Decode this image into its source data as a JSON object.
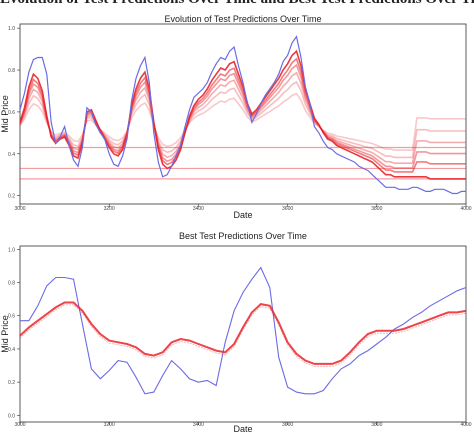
{
  "page_banner": "Evolution of Test Predictions Over Time and Best Test Predictions Over Time",
  "chart_data": [
    {
      "type": "line",
      "title": "Evolution of Test Predictions Over Time",
      "xlabel": "Date",
      "ylabel": "Mid Price",
      "xlim": [
        3000,
        4000
      ],
      "ylim": [
        0.16,
        1.02
      ],
      "xticks": [
        3000,
        3200,
        3400,
        3600,
        3800,
        4000
      ],
      "yticks": [
        0.2,
        0.4,
        0.6,
        0.8,
        1.0
      ],
      "actual_color": "#6b6be6",
      "prediction_color": "#e8242a",
      "actual": {
        "x": [
          3000,
          3010,
          3020,
          3030,
          3040,
          3050,
          3060,
          3070,
          3080,
          3090,
          3100,
          3110,
          3120,
          3130,
          3140,
          3150,
          3160,
          3170,
          3180,
          3190,
          3200,
          3210,
          3220,
          3230,
          3240,
          3250,
          3260,
          3270,
          3280,
          3290,
          3300,
          3310,
          3320,
          3330,
          3340,
          3350,
          3360,
          3370,
          3380,
          3390,
          3400,
          3410,
          3420,
          3430,
          3440,
          3450,
          3460,
          3470,
          3480,
          3490,
          3500,
          3510,
          3520,
          3530,
          3540,
          3550,
          3560,
          3570,
          3580,
          3590,
          3600,
          3610,
          3620,
          3630,
          3640,
          3650,
          3660,
          3670,
          3680,
          3690,
          3700,
          3710,
          3720,
          3730,
          3740,
          3750,
          3760,
          3770,
          3780,
          3790,
          3800,
          3810,
          3820,
          3830,
          3840,
          3850,
          3860,
          3870,
          3880,
          3890,
          3900,
          3910,
          3920,
          3930,
          3940,
          3950,
          3960,
          3970,
          3980,
          3990,
          4000
        ],
        "y": [
          0.61,
          0.69,
          0.79,
          0.85,
          0.86,
          0.86,
          0.78,
          0.55,
          0.45,
          0.48,
          0.53,
          0.44,
          0.37,
          0.34,
          0.43,
          0.62,
          0.6,
          0.54,
          0.5,
          0.47,
          0.4,
          0.35,
          0.34,
          0.39,
          0.47,
          0.65,
          0.76,
          0.82,
          0.86,
          0.74,
          0.5,
          0.36,
          0.29,
          0.3,
          0.34,
          0.39,
          0.44,
          0.53,
          0.61,
          0.67,
          0.69,
          0.71,
          0.74,
          0.79,
          0.83,
          0.86,
          0.85,
          0.89,
          0.91,
          0.82,
          0.74,
          0.64,
          0.55,
          0.59,
          0.64,
          0.68,
          0.71,
          0.74,
          0.78,
          0.84,
          0.87,
          0.93,
          0.96,
          0.86,
          0.72,
          0.64,
          0.53,
          0.5,
          0.46,
          0.43,
          0.42,
          0.4,
          0.39,
          0.38,
          0.37,
          0.36,
          0.34,
          0.33,
          0.32,
          0.3,
          0.28,
          0.26,
          0.24,
          0.24,
          0.24,
          0.23,
          0.23,
          0.23,
          0.24,
          0.24,
          0.23,
          0.22,
          0.22,
          0.23,
          0.23,
          0.23,
          0.22,
          0.21,
          0.21,
          0.22,
          0.22
        ]
      },
      "best_prediction": {
        "x": [
          3000,
          3010,
          3020,
          3030,
          3040,
          3050,
          3060,
          3070,
          3080,
          3090,
          3100,
          3110,
          3120,
          3130,
          3140,
          3150,
          3160,
          3170,
          3180,
          3190,
          3200,
          3210,
          3220,
          3230,
          3240,
          3250,
          3260,
          3270,
          3280,
          3290,
          3300,
          3310,
          3320,
          3330,
          3340,
          3350,
          3360,
          3370,
          3380,
          3390,
          3400,
          3410,
          3420,
          3430,
          3440,
          3450,
          3460,
          3470,
          3480,
          3490,
          3500,
          3510,
          3520,
          3530,
          3540,
          3550,
          3560,
          3570,
          3580,
          3590,
          3600,
          3610,
          3620,
          3630,
          3640,
          3650,
          3660,
          3670,
          3680,
          3690,
          3700,
          3710,
          3720,
          3730,
          3740,
          3750,
          3760,
          3770,
          3780,
          3790,
          3800,
          3810,
          3820,
          3830,
          3840,
          3850,
          3860,
          3870,
          3880,
          3890,
          3900,
          3910,
          3920,
          3930,
          3940,
          3950,
          3960,
          3970,
          3980,
          3990,
          4000
        ],
        "y": [
          0.55,
          0.62,
          0.72,
          0.78,
          0.76,
          0.7,
          0.58,
          0.48,
          0.45,
          0.47,
          0.48,
          0.44,
          0.39,
          0.38,
          0.45,
          0.6,
          0.61,
          0.56,
          0.51,
          0.47,
          0.43,
          0.4,
          0.39,
          0.42,
          0.49,
          0.63,
          0.71,
          0.76,
          0.79,
          0.71,
          0.55,
          0.42,
          0.35,
          0.33,
          0.34,
          0.37,
          0.42,
          0.5,
          0.58,
          0.63,
          0.66,
          0.68,
          0.71,
          0.75,
          0.78,
          0.81,
          0.8,
          0.83,
          0.84,
          0.78,
          0.72,
          0.64,
          0.59,
          0.61,
          0.64,
          0.67,
          0.7,
          0.73,
          0.76,
          0.8,
          0.83,
          0.87,
          0.89,
          0.82,
          0.71,
          0.64,
          0.57,
          0.54,
          0.5,
          0.47,
          0.46,
          0.44,
          0.43,
          0.42,
          0.41,
          0.4,
          0.39,
          0.38,
          0.37,
          0.36,
          0.34,
          0.32,
          0.3,
          0.3,
          0.29,
          0.29,
          0.29,
          0.29,
          0.29,
          0.29,
          0.29,
          0.29,
          0.28,
          0.28,
          0.28,
          0.28,
          0.28,
          0.28,
          0.28,
          0.28,
          0.28
        ]
      },
      "flat_prediction_levels": [
        0.43,
        0.33,
        0.28
      ]
    },
    {
      "type": "line",
      "title": "Best Test Predictions Over Time",
      "xlabel": "Date",
      "ylabel": "Mid Price",
      "xlim": [
        3000,
        4000
      ],
      "ylim": [
        -0.04,
        1.02
      ],
      "xticks": [
        3000,
        3200,
        3400,
        3600,
        3800,
        4000
      ],
      "yticks": [
        0.0,
        0.2,
        0.4,
        0.6,
        0.8,
        1.0
      ],
      "actual_color": "#6b6be6",
      "prediction_color": "#e8242a",
      "actual": {
        "x": [
          3000,
          3020,
          3040,
          3060,
          3080,
          3100,
          3120,
          3140,
          3160,
          3180,
          3200,
          3220,
          3240,
          3260,
          3280,
          3300,
          3320,
          3340,
          3360,
          3380,
          3400,
          3420,
          3440,
          3460,
          3480,
          3500,
          3520,
          3540,
          3560,
          3580,
          3600,
          3620,
          3640,
          3660,
          3680,
          3700,
          3720,
          3740,
          3760,
          3780,
          3800,
          3820,
          3840,
          3860,
          3880,
          3900,
          3920,
          3940,
          3960,
          3980,
          4000
        ],
        "y": [
          0.57,
          0.57,
          0.66,
          0.78,
          0.83,
          0.83,
          0.82,
          0.55,
          0.28,
          0.22,
          0.27,
          0.33,
          0.32,
          0.23,
          0.13,
          0.14,
          0.24,
          0.33,
          0.28,
          0.22,
          0.2,
          0.21,
          0.18,
          0.44,
          0.63,
          0.74,
          0.82,
          0.89,
          0.77,
          0.35,
          0.17,
          0.14,
          0.13,
          0.13,
          0.15,
          0.22,
          0.28,
          0.31,
          0.36,
          0.39,
          0.43,
          0.47,
          0.52,
          0.55,
          0.59,
          0.62,
          0.66,
          0.69,
          0.72,
          0.75,
          0.77
        ]
      },
      "prediction": {
        "x": [
          3000,
          3020,
          3040,
          3060,
          3080,
          3100,
          3120,
          3140,
          3160,
          3180,
          3200,
          3220,
          3240,
          3260,
          3280,
          3300,
          3320,
          3340,
          3360,
          3380,
          3400,
          3420,
          3440,
          3460,
          3480,
          3500,
          3520,
          3540,
          3560,
          3580,
          3600,
          3620,
          3640,
          3660,
          3680,
          3700,
          3720,
          3740,
          3760,
          3780,
          3800,
          3820,
          3840,
          3860,
          3880,
          3900,
          3920,
          3940,
          3960,
          3980,
          4000
        ],
        "y": [
          0.48,
          0.53,
          0.57,
          0.61,
          0.65,
          0.68,
          0.68,
          0.63,
          0.55,
          0.49,
          0.45,
          0.44,
          0.43,
          0.41,
          0.37,
          0.36,
          0.38,
          0.44,
          0.46,
          0.45,
          0.43,
          0.41,
          0.39,
          0.38,
          0.43,
          0.53,
          0.62,
          0.67,
          0.66,
          0.56,
          0.44,
          0.37,
          0.33,
          0.31,
          0.31,
          0.31,
          0.33,
          0.38,
          0.44,
          0.49,
          0.51,
          0.51,
          0.51,
          0.52,
          0.54,
          0.56,
          0.58,
          0.6,
          0.62,
          0.62,
          0.63
        ]
      }
    }
  ]
}
